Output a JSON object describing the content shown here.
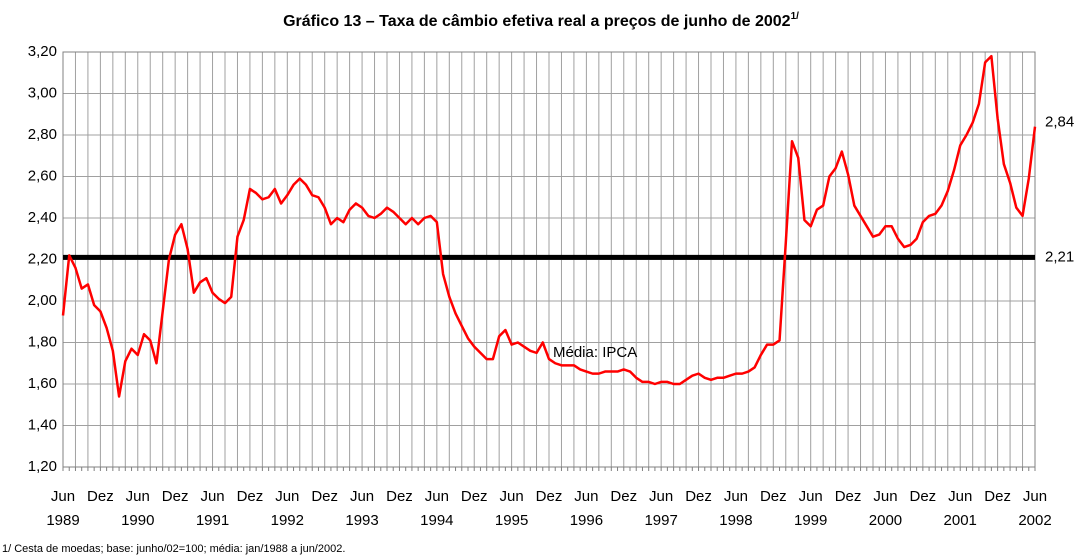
{
  "chart_data": {
    "type": "line",
    "title": "Gráfico 13 – Taxa de câmbio efetiva real a preços de junho de 2002",
    "title_sup": "1/",
    "footnote": "1/ Cesta de moedas; base: junho/02=100; média: jan/1988 a jun/2002.",
    "categories": [
      "Jun 1989",
      null,
      null,
      null,
      null,
      null,
      "Dez",
      null,
      null,
      null,
      null,
      null,
      "Jun 1990",
      null,
      null,
      null,
      null,
      null,
      "Dez",
      null,
      null,
      null,
      null,
      null,
      "Jun 1991",
      null,
      null,
      null,
      null,
      null,
      "Dez",
      null,
      null,
      null,
      null,
      null,
      "Jun 1992",
      null,
      null,
      null,
      null,
      null,
      "Dez",
      null,
      null,
      null,
      null,
      null,
      "Jun 1993",
      null,
      null,
      null,
      null,
      null,
      "Dez",
      null,
      null,
      null,
      null,
      null,
      "Jun 1994",
      null,
      null,
      null,
      null,
      null,
      "Dez",
      null,
      null,
      null,
      null,
      null,
      "Jun 1995",
      null,
      null,
      null,
      null,
      null,
      "Dez",
      null,
      null,
      null,
      null,
      null,
      "Jun 1996",
      null,
      null,
      null,
      null,
      null,
      "Dez",
      null,
      null,
      null,
      null,
      null,
      "Jun 1997",
      null,
      null,
      null,
      null,
      null,
      "Dez",
      null,
      null,
      null,
      null,
      null,
      "Jun 1998",
      null,
      null,
      null,
      null,
      null,
      "Dez",
      null,
      null,
      null,
      null,
      null,
      "Jun 1999",
      null,
      null,
      null,
      null,
      null,
      "Dez",
      null,
      null,
      null,
      null,
      null,
      "Jun 2000",
      null,
      null,
      null,
      null,
      null,
      "Dez",
      null,
      null,
      null,
      null,
      null,
      "Jun 2001",
      null,
      null,
      null,
      null,
      null,
      "Dez",
      null,
      null,
      null,
      null,
      null,
      "Jun 2002"
    ],
    "series": [
      {
        "color": "#ff0000",
        "end_label": "2,84",
        "values": [
          1.93,
          2.22,
          2.16,
          2.06,
          2.08,
          1.98,
          1.95,
          1.87,
          1.76,
          1.54,
          1.71,
          1.77,
          1.74,
          1.84,
          1.81,
          1.7,
          1.95,
          2.2,
          2.32,
          2.37,
          2.25,
          2.04,
          2.09,
          2.11,
          2.04,
          2.01,
          1.99,
          2.02,
          2.31,
          2.39,
          2.54,
          2.52,
          2.49,
          2.5,
          2.54,
          2.47,
          2.51,
          2.56,
          2.59,
          2.56,
          2.51,
          2.5,
          2.45,
          2.37,
          2.4,
          2.38,
          2.44,
          2.47,
          2.45,
          2.41,
          2.4,
          2.42,
          2.45,
          2.43,
          2.4,
          2.37,
          2.4,
          2.37,
          2.4,
          2.41,
          2.38,
          2.13,
          2.02,
          1.94,
          1.88,
          1.82,
          1.78,
          1.75,
          1.72,
          1.72,
          1.83,
          1.86,
          1.79,
          1.8,
          1.78,
          1.76,
          1.75,
          1.8,
          1.72,
          1.7,
          1.69,
          1.69,
          1.69,
          1.67,
          1.66,
          1.65,
          1.65,
          1.66,
          1.66,
          1.66,
          1.67,
          1.66,
          1.63,
          1.61,
          1.61,
          1.6,
          1.61,
          1.61,
          1.6,
          1.6,
          1.62,
          1.64,
          1.65,
          1.63,
          1.62,
          1.63,
          1.63,
          1.64,
          1.65,
          1.65,
          1.66,
          1.68,
          1.74,
          1.79,
          1.79,
          1.81,
          2.28,
          2.77,
          2.69,
          2.39,
          2.36,
          2.44,
          2.46,
          2.6,
          2.64,
          2.72,
          2.61,
          2.46,
          2.41,
          2.36,
          2.31,
          2.32,
          2.36,
          2.36,
          2.3,
          2.26,
          2.27,
          2.3,
          2.38,
          2.41,
          2.42,
          2.46,
          2.53,
          2.63,
          2.75,
          2.8,
          2.86,
          2.95,
          3.15,
          3.18,
          2.88,
          2.66,
          2.57,
          2.45,
          2.41,
          2.59,
          2.84
        ]
      }
    ],
    "mean": {
      "value": 2.21,
      "label": "2,21",
      "name": "Média: IPCA",
      "color": "#000000"
    },
    "ylim": [
      1.2,
      3.2
    ],
    "yticks": [
      {
        "value": 1.2,
        "label": "1,20"
      },
      {
        "value": 1.4,
        "label": "1,40"
      },
      {
        "value": 1.6,
        "label": "1,60"
      },
      {
        "value": 1.8,
        "label": "1,80"
      },
      {
        "value": 2.0,
        "label": "2,00"
      },
      {
        "value": 2.2,
        "label": "2,20"
      },
      {
        "value": 2.4,
        "label": "2,40"
      },
      {
        "value": 2.6,
        "label": "2,60"
      },
      {
        "value": 2.8,
        "label": "2,80"
      },
      {
        "value": 3.0,
        "label": "3,00"
      },
      {
        "value": 3.2,
        "label": "3,20"
      }
    ],
    "grid": true
  }
}
